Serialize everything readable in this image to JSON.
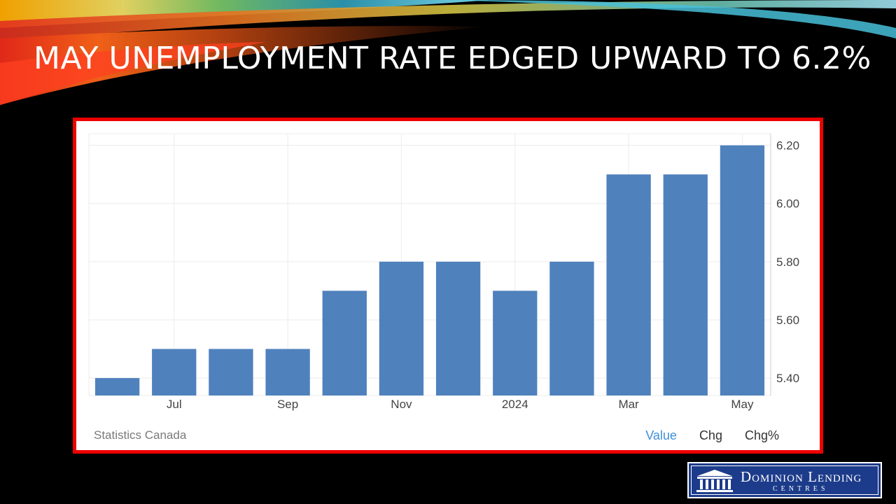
{
  "slide": {
    "title": "MAY UNEMPLOYMENT RATE EDGED UPWARD TO 6.2%"
  },
  "chart_footer": {
    "source": "Statistics Canada",
    "tabs": [
      "Value",
      "Chg",
      "Chg%"
    ],
    "active_tab": "Value"
  },
  "logo": {
    "name": "Dominion Lending",
    "subtitle": "CENTRES"
  },
  "colors": {
    "bar": "#4f81bd",
    "frame": "#ee0000",
    "active_tab": "#3f8fd8"
  },
  "chart_data": {
    "type": "bar",
    "bars": [
      {
        "value": 5.4,
        "tick": ""
      },
      {
        "value": 5.5,
        "tick": "Jul"
      },
      {
        "value": 5.5,
        "tick": ""
      },
      {
        "value": 5.5,
        "tick": "Sep"
      },
      {
        "value": 5.7,
        "tick": ""
      },
      {
        "value": 5.8,
        "tick": "Nov"
      },
      {
        "value": 5.8,
        "tick": ""
      },
      {
        "value": 5.7,
        "tick": "2024"
      },
      {
        "value": 5.8,
        "tick": ""
      },
      {
        "value": 6.1,
        "tick": "Mar"
      },
      {
        "value": 6.1,
        "tick": ""
      },
      {
        "value": 6.2,
        "tick": "May"
      }
    ],
    "y_ticks": [
      "5.40",
      "5.60",
      "5.80",
      "6.00",
      "6.20"
    ],
    "ylim": [
      5.34,
      6.24
    ],
    "y_axis_side": "right",
    "grid": true,
    "legend": "none"
  }
}
